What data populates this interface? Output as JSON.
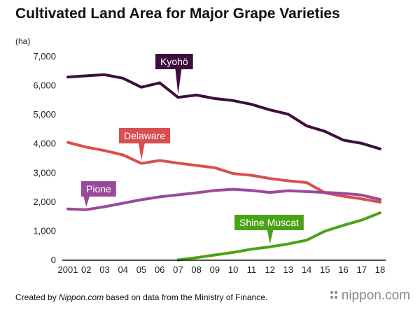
{
  "title": "Cultivated Land Area for Major Grape Varieties",
  "unit": "(ha)",
  "footer": {
    "prefix": "Created by ",
    "source_name": "Nippon.com",
    "suffix": " based on data from the Ministry of Finance."
  },
  "brand": "nippon.com",
  "colors": {
    "axis": "#111111",
    "background": "#ffffff"
  },
  "chart_data": {
    "type": "line",
    "title": "Cultivated Land Area for Major Grape Varieties",
    "ylabel": "(ha)",
    "xlabel": "",
    "ylim": [
      0,
      7000
    ],
    "yticks": [
      "0",
      "1,000",
      "2,000",
      "3,000",
      "4,000",
      "5,000",
      "6,000",
      "7,000"
    ],
    "x": [
      "2001",
      "02",
      "03",
      "04",
      "05",
      "06",
      "07",
      "08",
      "09",
      "10",
      "11",
      "12",
      "13",
      "14",
      "15",
      "16",
      "17",
      "18"
    ],
    "grid": false,
    "series": [
      {
        "name": "Kyohō",
        "color": "#3d0f3d",
        "label_color": "#3d0f3d",
        "values": [
          6300,
          6340,
          6380,
          6260,
          5950,
          6100,
          5600,
          5680,
          5560,
          5490,
          5360,
          5170,
          5020,
          4620,
          4430,
          4130,
          4020,
          3830
        ]
      },
      {
        "name": "Delaware",
        "color": "#d94f4f",
        "label_color": "#d94f4f",
        "values": [
          4050,
          3890,
          3770,
          3620,
          3330,
          3430,
          3340,
          3260,
          3180,
          2980,
          2920,
          2810,
          2730,
          2670,
          2320,
          2200,
          2110,
          2000
        ]
      },
      {
        "name": "Pione",
        "color": "#9b4a9b",
        "label_color": "#9b4a9b",
        "values": [
          1760,
          1740,
          1840,
          1960,
          2080,
          2180,
          2250,
          2320,
          2400,
          2440,
          2400,
          2330,
          2390,
          2360,
          2330,
          2300,
          2240,
          2090
        ]
      },
      {
        "name": "Shine Muscat",
        "color": "#4aa317",
        "label_color": "#4aa317",
        "values": [
          null,
          null,
          null,
          null,
          null,
          null,
          10,
          90,
          180,
          270,
          380,
          460,
          560,
          690,
          1000,
          1200,
          1380,
          1630
        ]
      }
    ]
  }
}
